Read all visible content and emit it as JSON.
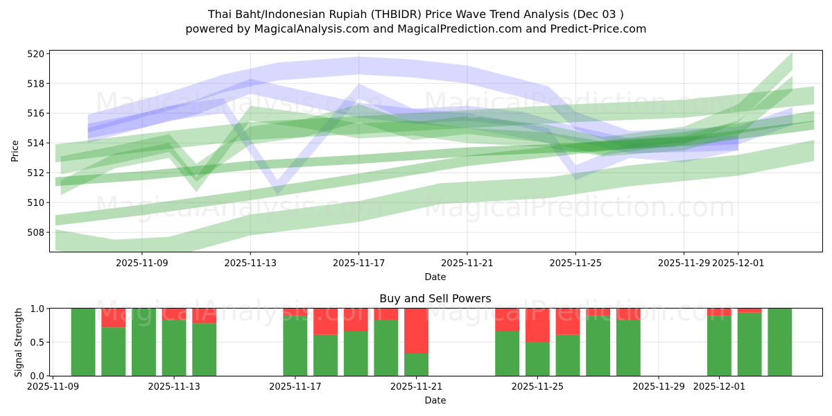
{
  "title_line1": "Thai Baht/Indonesian Rupiah (THBIDR) Price Wave Trend Analysis (Dec 03 )",
  "title_line2": "powered by MagicalAnalysis.com and MagicalPrediction.com and Predict-Price.com",
  "watermarks": [
    "MagicalAnalysis.com",
    "MagicalPrediction.com"
  ],
  "colors": {
    "bullish": "#2ca02c",
    "bearish_wave": "#6666ff",
    "buy": "#4aa84a",
    "sell": "#ff4444"
  },
  "chart_data": [
    {
      "type": "area",
      "title": "",
      "xlabel": "Date",
      "ylabel": "Price",
      "ylim": [
        506.7,
        520.2
      ],
      "xlim": [
        "2025-11-05.6",
        "2025-12-04.1"
      ],
      "x_tick_labels": [
        "2025-11-09",
        "2025-11-13",
        "2025-11-17",
        "2025-11-21",
        "2025-11-25",
        "2025-11-29",
        "2025-12-01"
      ],
      "y_tick_labels": [
        "508",
        "510",
        "512",
        "514",
        "516",
        "518",
        "520"
      ],
      "grid": true,
      "series": [
        {
          "name": "blue-wave-1",
          "color": "#6666ff",
          "alpha": 0.25,
          "band": 1.2,
          "x": [
            "2025-11-07",
            "2025-11-10",
            "2025-11-12",
            "2025-11-14",
            "2025-11-17",
            "2025-11-19",
            "2025-11-21",
            "2025-11-24",
            "2025-11-25",
            "2025-11-27",
            "2025-12-01",
            "2025-12-03"
          ],
          "y": [
            515.3,
            516.8,
            518.0,
            518.8,
            519.2,
            519.0,
            518.6,
            517.2,
            515.5,
            514.2,
            514.5,
            515.8
          ]
        },
        {
          "name": "blue-wave-2",
          "color": "#6666ff",
          "alpha": 0.25,
          "band": 1.0,
          "x": [
            "2025-11-07",
            "2025-11-09",
            "2025-11-11",
            "2025-11-13",
            "2025-11-15",
            "2025-11-17",
            "2025-11-19",
            "2025-11-21",
            "2025-11-23",
            "2025-11-25",
            "2025-11-27",
            "2025-12-01"
          ],
          "y": [
            514.8,
            515.5,
            516.4,
            517.8,
            517.0,
            516.2,
            515.8,
            516.0,
            515.6,
            514.6,
            513.8,
            514.0
          ]
        },
        {
          "name": "blue-wave-3",
          "color": "#6666ff",
          "alpha": 0.22,
          "band": 1.0,
          "x": [
            "2025-11-07",
            "2025-11-10",
            "2025-11-12",
            "2025-11-14",
            "2025-11-17",
            "2025-11-19",
            "2025-11-21",
            "2025-11-24",
            "2025-11-25",
            "2025-11-27",
            "2025-11-29",
            "2025-12-01"
          ],
          "y": [
            514.5,
            516.0,
            516.5,
            511.0,
            517.5,
            515.8,
            515.5,
            514.5,
            512.0,
            513.5,
            513.2,
            514.0
          ]
        },
        {
          "name": "green-wave-1",
          "color": "#2ca02c",
          "alpha": 0.4,
          "band": 0.6,
          "x": [
            "2025-11-05.8",
            "2025-11-09",
            "2025-11-13",
            "2025-11-17",
            "2025-11-21",
            "2025-11-25",
            "2025-11-29",
            "2025-12-03.8"
          ],
          "y": [
            511.4,
            511.8,
            512.5,
            512.9,
            513.4,
            513.7,
            514.1,
            515.2
          ]
        },
        {
          "name": "green-wave-2",
          "color": "#2ca02c",
          "alpha": 0.35,
          "band": 0.7,
          "x": [
            "2025-11-05.8",
            "2025-11-09",
            "2025-11-13",
            "2025-11-17",
            "2025-11-21",
            "2025-11-25",
            "2025-11-29",
            "2025-12-03.8"
          ],
          "y": [
            508.8,
            509.5,
            510.5,
            511.6,
            512.8,
            513.6,
            514.4,
            515.8
          ]
        },
        {
          "name": "green-wave-3",
          "color": "#2ca02c",
          "alpha": 0.3,
          "band": 1.2,
          "x": [
            "2025-11-05.8",
            "2025-11-09",
            "2025-11-13",
            "2025-11-17",
            "2025-11-21",
            "2025-11-25",
            "2025-11-29",
            "2025-12-03.8"
          ],
          "y": [
            513.3,
            514.0,
            514.8,
            515.2,
            515.6,
            516.0,
            516.3,
            517.2
          ]
        },
        {
          "name": "green-wave-4",
          "color": "#2ca02c",
          "alpha": 0.3,
          "band": 1.4,
          "x": [
            "2025-11-05.8",
            "2025-11-08",
            "2025-11-10",
            "2025-11-13",
            "2025-11-17",
            "2025-11-20",
            "2025-11-24",
            "2025-11-27",
            "2025-12-01",
            "2025-12-03.8"
          ],
          "y": [
            507.5,
            506.8,
            507.0,
            508.5,
            509.4,
            510.6,
            511.0,
            511.8,
            512.5,
            513.5
          ]
        },
        {
          "name": "green-wave-5",
          "color": "#2ca02c",
          "alpha": 0.28,
          "band": 1.2,
          "x": [
            "2025-11-06",
            "2025-11-08",
            "2025-11-10",
            "2025-11-11",
            "2025-11-13",
            "2025-11-15",
            "2025-11-17",
            "2025-11-19",
            "2025-11-21",
            "2025-11-24",
            "2025-11-26",
            "2025-11-29",
            "2025-12-01",
            "2025-12-03"
          ],
          "y": [
            512.5,
            513.2,
            514.0,
            512.0,
            514.5,
            515.0,
            516.0,
            514.8,
            515.2,
            514.6,
            513.8,
            514.5,
            516.0,
            519.5
          ]
        },
        {
          "name": "green-wave-6",
          "color": "#2ca02c",
          "alpha": 0.28,
          "band": 1.0,
          "x": [
            "2025-11-06",
            "2025-11-08",
            "2025-11-10",
            "2025-11-11",
            "2025-11-13",
            "2025-11-15",
            "2025-11-17",
            "2025-11-19",
            "2025-11-21",
            "2025-11-24",
            "2025-11-26",
            "2025-11-29",
            "2025-12-01",
            "2025-12-03"
          ],
          "y": [
            511.0,
            512.8,
            513.5,
            511.2,
            516.0,
            515.5,
            514.8,
            515.0,
            514.5,
            514.2,
            513.6,
            514.0,
            515.0,
            518.0
          ]
        }
      ]
    },
    {
      "type": "bar",
      "title": "Buy and Sell Powers",
      "xlabel": "Date",
      "ylabel": "Signal Strength",
      "ylim": [
        0,
        1.0
      ],
      "xlim": [
        "2025-11-08.9",
        "2025-12-04.4"
      ],
      "x_tick_labels": [
        "2025-11-09",
        "2025-11-13",
        "2025-11-17",
        "2025-11-21",
        "2025-11-25",
        "2025-11-29",
        "2025-12-01"
      ],
      "y_tick_labels": [
        "0.0",
        "0.5",
        "1.0"
      ],
      "grid": true,
      "categories": [
        "2025-11-10",
        "2025-11-11",
        "2025-11-12",
        "2025-11-13",
        "2025-11-14",
        "2025-11-17",
        "2025-11-18",
        "2025-11-19",
        "2025-11-20",
        "2025-11-21",
        "2025-11-24",
        "2025-11-25",
        "2025-11-26",
        "2025-11-27",
        "2025-11-28",
        "2025-12-01",
        "2025-12-02",
        "2025-12-03"
      ],
      "series": [
        {
          "name": "Buy",
          "color": "#4aa84a",
          "values": [
            1.0,
            0.72,
            1.0,
            0.83,
            0.78,
            0.89,
            0.61,
            0.66,
            0.83,
            0.33,
            0.66,
            0.5,
            0.61,
            0.89,
            0.83,
            0.89,
            0.94,
            1.0
          ]
        },
        {
          "name": "Sell",
          "color": "#ff4444",
          "values": [
            0.0,
            0.28,
            0.0,
            0.17,
            0.22,
            0.11,
            0.39,
            0.34,
            0.17,
            0.67,
            0.34,
            0.5,
            0.39,
            0.11,
            0.17,
            0.11,
            0.06,
            0.0
          ]
        }
      ]
    }
  ]
}
